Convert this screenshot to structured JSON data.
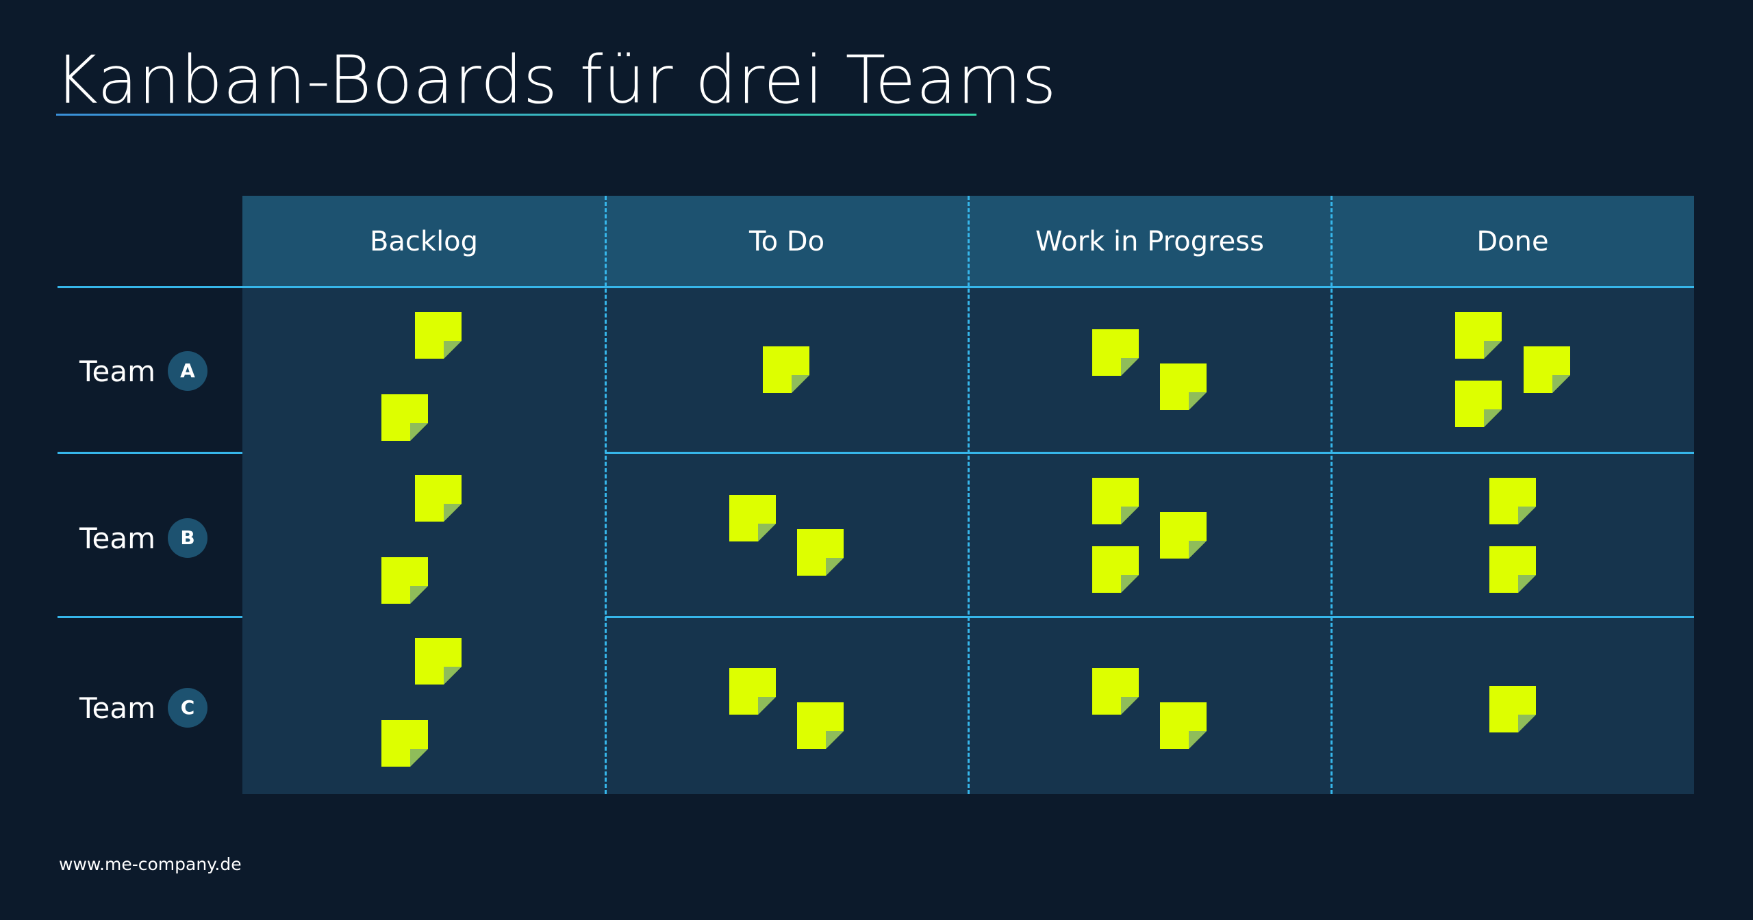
{
  "title": "Kanban-Boards für drei Teams",
  "footer": "www.me-company.de",
  "columns": [
    "Backlog",
    "To Do",
    "Work in Progress",
    "Done"
  ],
  "rows": [
    {
      "label": "Team",
      "badge": "A"
    },
    {
      "label": "Team",
      "badge": "B"
    },
    {
      "label": "Team",
      "badge": "C"
    }
  ],
  "cards_per_cell": [
    [
      2,
      1,
      2,
      3
    ],
    [
      2,
      2,
      3,
      2
    ],
    [
      2,
      2,
      2,
      1
    ]
  ],
  "colors": {
    "background": "#0c1a2b",
    "board": "#16344d",
    "header": "#1d5270",
    "lines": "#36b6ea",
    "note": "#ddff00",
    "note_fold": "#8fbd5a"
  }
}
